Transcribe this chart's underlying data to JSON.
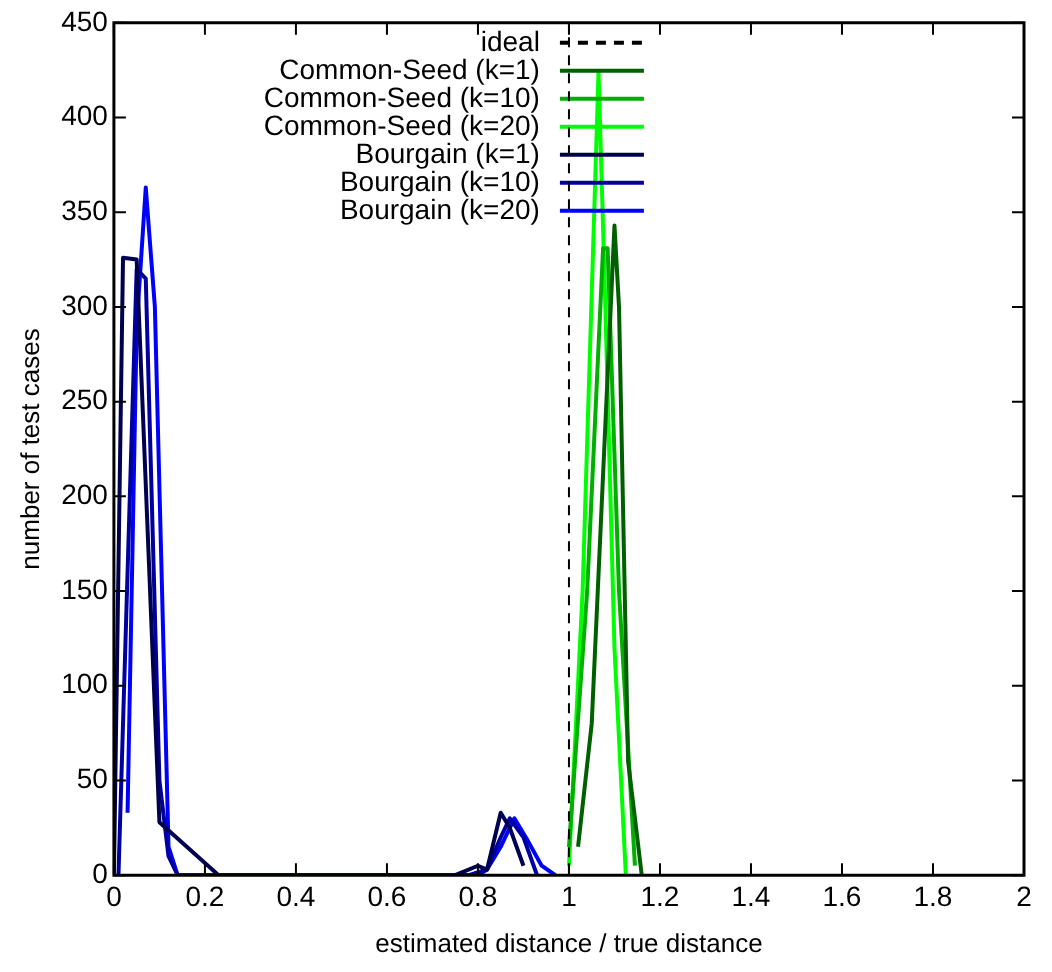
{
  "chart_data": {
    "type": "line",
    "xlabel": "estimated distance / true distance",
    "ylabel": "number of test cases",
    "xlim": [
      0,
      2
    ],
    "ylim": [
      0,
      450
    ],
    "xticks": [
      0,
      0.2,
      0.4,
      0.6,
      0.8,
      1,
      1.2,
      1.4,
      1.6,
      1.8,
      2
    ],
    "yticks": [
      0,
      50,
      100,
      150,
      200,
      250,
      300,
      350,
      400,
      450
    ],
    "legend": "top left",
    "marker": "none",
    "ref_lines": [
      {
        "axis": "x",
        "value": 1,
        "label": "ideal",
        "color": "#000000",
        "line_style": "dashed"
      }
    ],
    "series": [
      {
        "name": "Common-Seed (k=1)",
        "color": "#006000",
        "x": [
          1.02,
          1.05,
          1.1,
          1.11,
          1.13,
          1.16
        ],
        "values": [
          15,
          80,
          343,
          300,
          60,
          0
        ]
      },
      {
        "name": "Common-Seed (k=10)",
        "color": "#00b000",
        "x": [
          1.0,
          1.04,
          1.075,
          1.085,
          1.11,
          1.145
        ],
        "values": [
          15,
          150,
          331,
          331,
          150,
          5
        ]
      },
      {
        "name": "Common-Seed (k=20)",
        "color": "#00ff00",
        "x": [
          1.0,
          1.03,
          1.065,
          1.08,
          1.1,
          1.125
        ],
        "values": [
          5,
          150,
          424,
          300,
          120,
          0
        ]
      },
      {
        "name": "Bourgain (k=1)",
        "color": "#000050",
        "x": [
          0,
          0.02,
          0.05,
          0.1,
          0.23,
          0.75,
          0.8,
          0.82,
          0.85,
          0.87,
          0.9
        ],
        "values": [
          0,
          326,
          325,
          28,
          0,
          0,
          5,
          3,
          33,
          25,
          5
        ]
      },
      {
        "name": "Bourgain (k=10)",
        "color": "#0000a0",
        "x": [
          0.01,
          0.05,
          0.07,
          0.1,
          0.12,
          0.14,
          0.78,
          0.82,
          0.85,
          0.87,
          0.9,
          0.93
        ],
        "values": [
          0,
          320,
          315,
          50,
          10,
          0,
          0,
          3,
          20,
          30,
          20,
          0
        ]
      },
      {
        "name": "Bourgain (k=20)",
        "color": "#0000ff",
        "x": [
          0.03,
          0.05,
          0.07,
          0.09,
          0.12,
          0.14,
          0.8,
          0.82,
          0.85,
          0.88,
          0.91,
          0.94,
          0.97
        ],
        "values": [
          33,
          290,
          363,
          300,
          15,
          0,
          0,
          3,
          15,
          30,
          18,
          5,
          0
        ]
      }
    ]
  }
}
